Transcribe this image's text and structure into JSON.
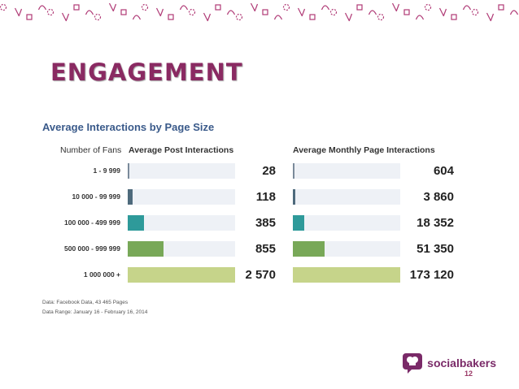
{
  "slide": {
    "title": "ENGAGEMENT",
    "page_number": "12",
    "colors": {
      "title": "#8a2a62",
      "decoration": "#b03a76",
      "page_number": "#9a3866"
    }
  },
  "chart_data": {
    "type": "bar",
    "title": "Average Interactions by Page Size",
    "row_header": "Number of Fans",
    "categories": [
      {
        "from": "1",
        "sep": "-",
        "to": "9 999"
      },
      {
        "from": "10 000",
        "sep": "-",
        "to": "99 999"
      },
      {
        "from": "100 000",
        "sep": "-",
        "to": "499 999"
      },
      {
        "from": "500 000",
        "sep": "-",
        "to": "999 999"
      },
      {
        "from": "1 000 000 +",
        "sep": "",
        "to": ""
      }
    ],
    "series": [
      {
        "name": "Average Post Interactions",
        "values": [
          28,
          118,
          385,
          855,
          2570
        ],
        "labels": [
          "28",
          "118",
          "385",
          "855",
          "2 570"
        ]
      },
      {
        "name": "Average Monthly Page Interactions",
        "values": [
          604,
          3860,
          18352,
          51350,
          173120
        ],
        "labels": [
          "604",
          "3 860",
          "18 352",
          "51 350",
          "173 120"
        ]
      }
    ],
    "bar_colors": [
      "#7a8a9a",
      "#4e6a7c",
      "#2e9a9a",
      "#78a858",
      "#c6d48a"
    ],
    "footnotes": [
      "Data: Facebook Data, 43 465 Pages",
      "Data Range: January 16 - February 16, 2014"
    ]
  },
  "brand": {
    "name": "socialbakers",
    "icon": "chef-hat-icon"
  }
}
